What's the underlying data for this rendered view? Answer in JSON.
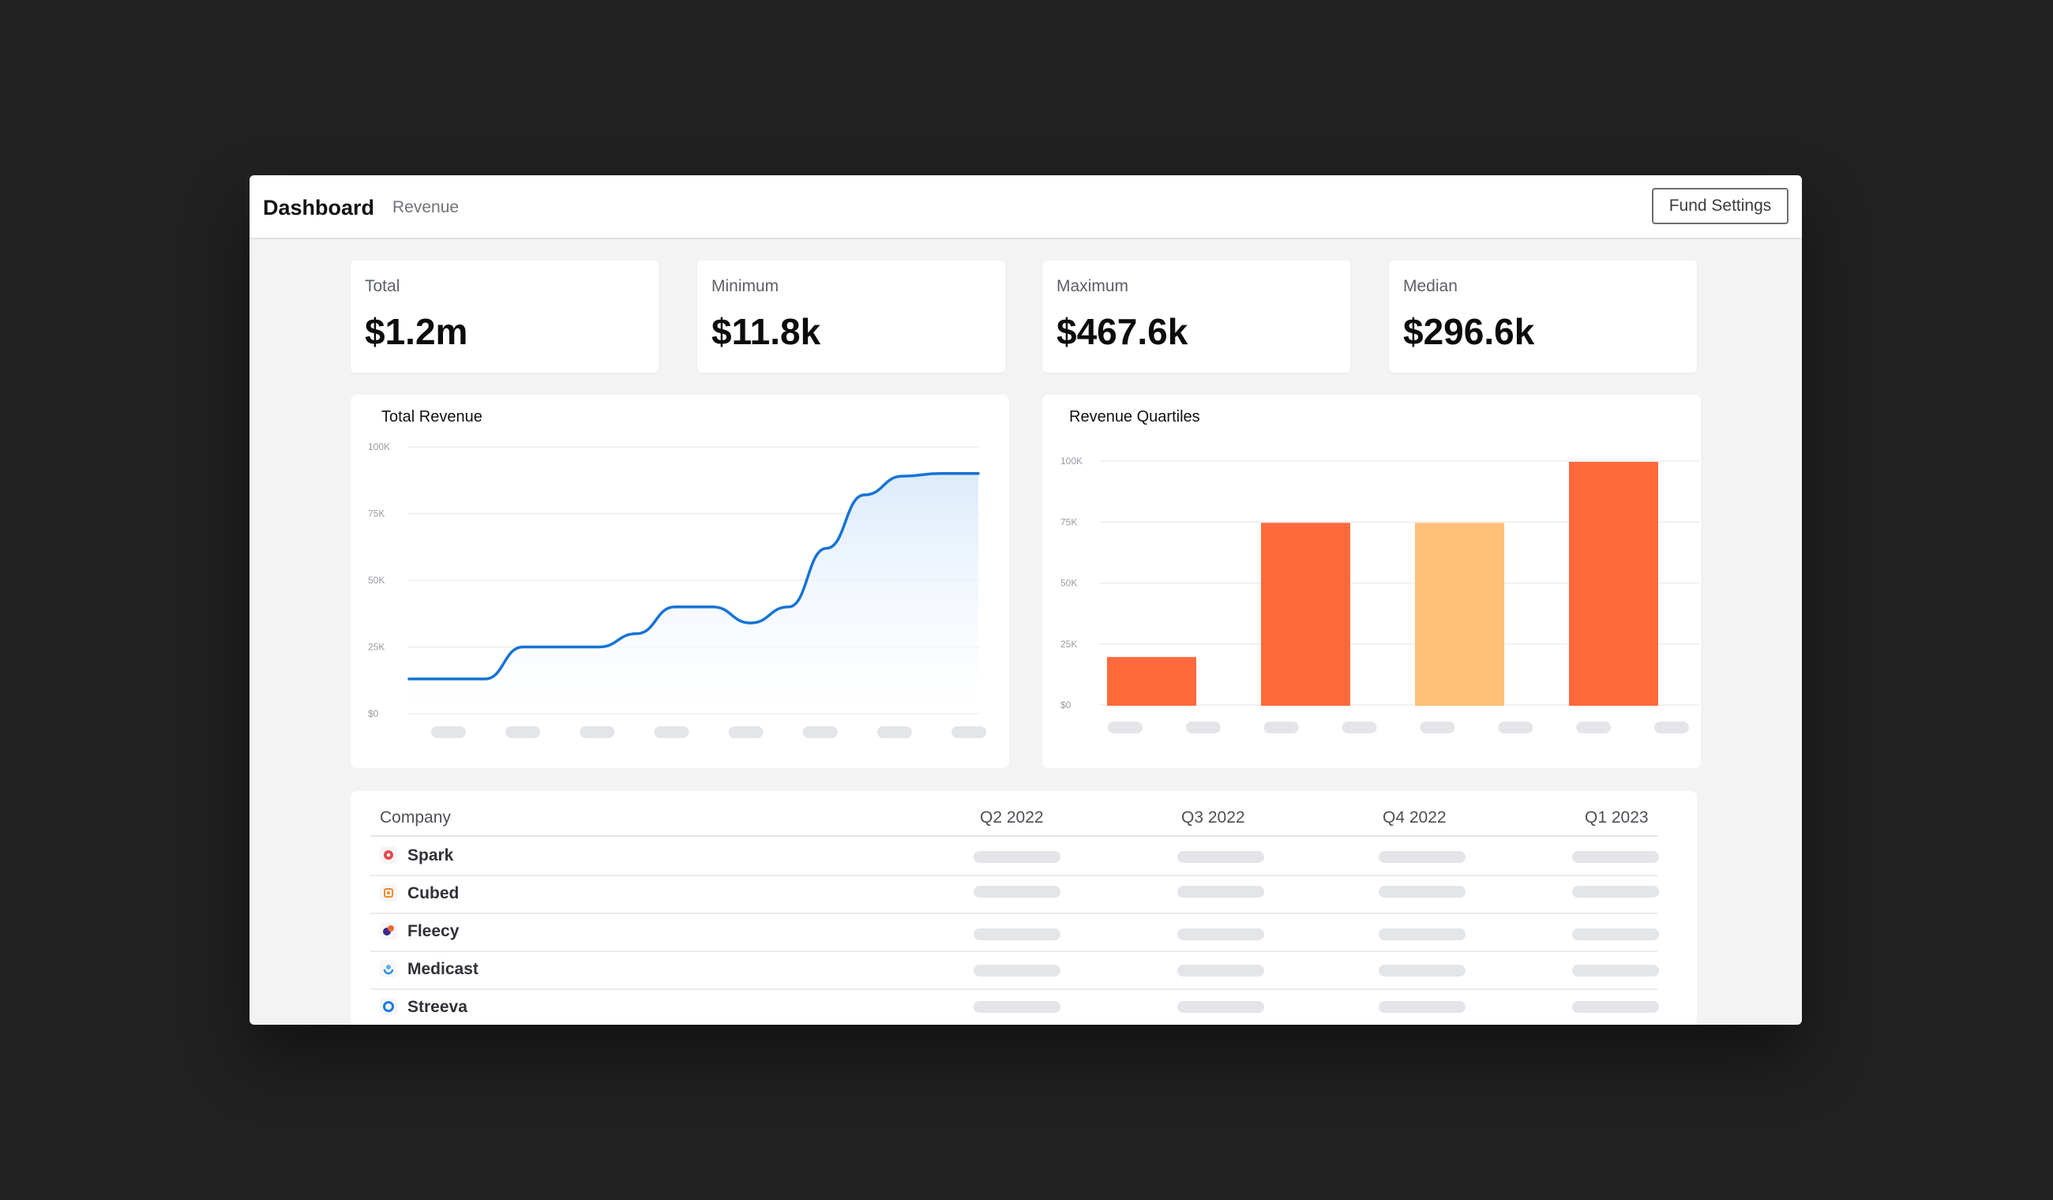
{
  "header": {
    "title": "Dashboard",
    "subtitle": "Revenue",
    "fund_settings_label": "Fund Settings"
  },
  "stats": [
    {
      "label": "Total",
      "value": "$1.2m"
    },
    {
      "label": "Minimum",
      "value": "$11.8k"
    },
    {
      "label": "Maximum",
      "value": "$467.6k"
    },
    {
      "label": "Median",
      "value": "$296.6k"
    }
  ],
  "chart_data": [
    {
      "type": "area",
      "title": "Total Revenue",
      "y_ticks": [
        "100K",
        "75K",
        "50K",
        "25K",
        "$0"
      ],
      "ylim": [
        0,
        100000
      ],
      "x_tick_count": 8,
      "x_labels_visible": false,
      "x": [
        0,
        0.5,
        1,
        1.5,
        2,
        2.5,
        3,
        3.5,
        4,
        4.5,
        5,
        5.5,
        6,
        6.5,
        7,
        7.5
      ],
      "values": [
        13000,
        13000,
        13000,
        25000,
        25000,
        25000,
        30000,
        40000,
        40000,
        34000,
        40000,
        62000,
        82000,
        89000,
        90000,
        90000
      ],
      "color": "#1673d4",
      "fill_color": "#dcebfb",
      "grid": true
    },
    {
      "type": "bar",
      "title": "Revenue Quartiles",
      "y_ticks": [
        "100K",
        "75K",
        "50K",
        "25K",
        "$0"
      ],
      "ylim": [
        0,
        100000
      ],
      "x_tick_count": 8,
      "x_labels_visible": false,
      "values": [
        20000,
        75000,
        75000,
        100000
      ],
      "colors": [
        "#ff6a3d",
        "#ff6a3d",
        "#ffc077",
        "#ff6a3d"
      ],
      "grid": true
    }
  ],
  "table": {
    "columns": [
      "Company",
      "Q2 2022",
      "Q3 2022",
      "Q4 2022",
      "Q1 2023"
    ],
    "rows": [
      {
        "company": "Spark",
        "logo_icon": "spark-logo-icon",
        "logo_color": "#e5484d"
      },
      {
        "company": "Cubed",
        "logo_icon": "cubed-logo-icon",
        "logo_color": "#f08c2e"
      },
      {
        "company": "Fleecy",
        "logo_icon": "fleecy-logo-icon",
        "logo_color": "#f06a2e"
      },
      {
        "company": "Medicast",
        "logo_icon": "medicast-logo-icon",
        "logo_color": "#2a8fe0"
      },
      {
        "company": "Streeva",
        "logo_icon": "streeva-logo-icon",
        "logo_color": "#1c7be0"
      }
    ]
  },
  "colors": {
    "accent_blue": "#1673d4",
    "bar_orange": "#ff6a3d",
    "bar_light_orange": "#ffc077",
    "background": "#212121"
  }
}
